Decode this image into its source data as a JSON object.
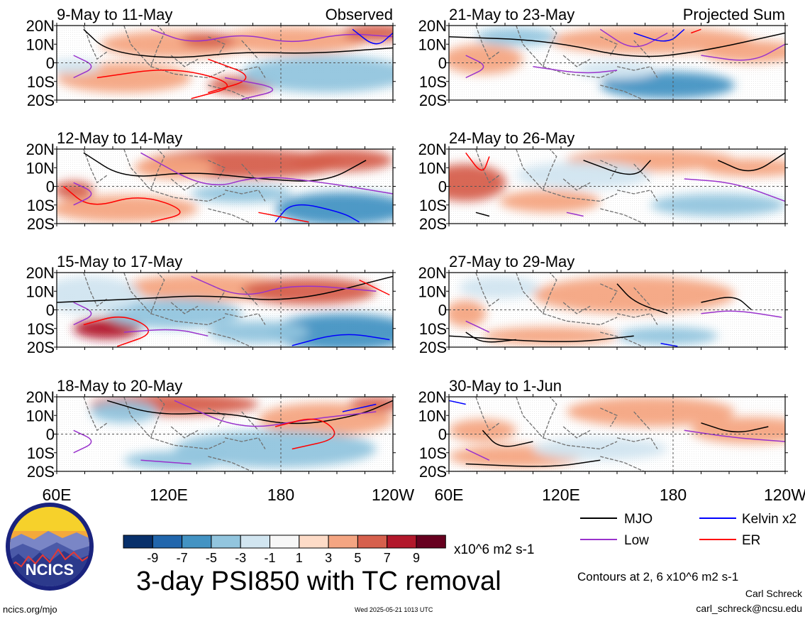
{
  "colors": {
    "scale": [
      "#08306b",
      "#2166ac",
      "#4393c3",
      "#92c5de",
      "#d1e5f0",
      "#f7f7f7",
      "#fddbc7",
      "#f4a582",
      "#d6604d",
      "#b2182b",
      "#67001f"
    ],
    "mjo": "#000000",
    "kelvin": "#0000ff",
    "low": "#9932cc",
    "er": "#ff0000",
    "coast": "#707070"
  },
  "panel_titles": {
    "observed": "Observed",
    "projected": "Projected Sum"
  },
  "panels_left": [
    {
      "period": "9-May to 11-May"
    },
    {
      "period": "12-May to 14-May"
    },
    {
      "period": "15-May to 17-May"
    },
    {
      "period": "18-May to 20-May"
    }
  ],
  "panels_right": [
    {
      "period": "21-May to 23-May"
    },
    {
      "period": "24-May to 26-May"
    },
    {
      "period": "27-May to 29-May"
    },
    {
      "period": "30-May to 1-Jun"
    }
  ],
  "axes": {
    "lat_ticks": [
      "20N",
      "10N",
      "0",
      "10S",
      "20S"
    ],
    "lon_ticks": [
      "60E",
      "120E",
      "180",
      "120W"
    ]
  },
  "colorbar": {
    "labels": [
      "-9",
      "-7",
      "-5",
      "-3",
      "-1",
      "1",
      "3",
      "5",
      "7",
      "9"
    ],
    "units": "x10^6 m2 s-1"
  },
  "legend": {
    "mjo": "MJO",
    "kelvin": "Kelvin x2",
    "low": "Low",
    "er": "ER",
    "contours_note": "Contours at 2, 6 x10^6 m2 s-1"
  },
  "main_title": "3-day PSI850 with TC removal",
  "logo": {
    "text": "NCICS"
  },
  "footer": {
    "url": "ncics.org/mjo",
    "timestamp": "Wed 2025-05-21 1013 UTC",
    "author": "Carl Schreck",
    "email": "carl_schreck@ncsu.edu"
  }
}
